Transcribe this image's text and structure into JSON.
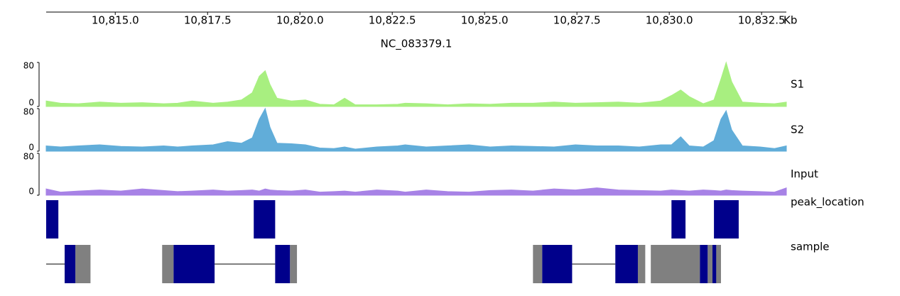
{
  "chart_data": [
    {
      "type": "axis",
      "title": "NC_083379.1",
      "unit": "Kb",
      "xlim": [
        10813.13,
        10833.17
      ],
      "xticks": [
        {
          "value": 10815,
          "label": "10,815.0"
        },
        {
          "value": 10817.5,
          "label": "10,817.5"
        },
        {
          "value": 10820,
          "label": "10,820.0"
        },
        {
          "value": 10822.5,
          "label": "10,822.5"
        },
        {
          "value": 10825,
          "label": "10,825.0"
        },
        {
          "value": 10827.5,
          "label": "10,827.5"
        },
        {
          "value": 10830,
          "label": "10,830.0"
        },
        {
          "value": 10832.5,
          "label": "10,832.5"
        }
      ]
    },
    {
      "type": "area",
      "name": "S1",
      "color": "#a8ef80",
      "xlim": [
        10813.13,
        10833.17
      ],
      "ylim": [
        0,
        80
      ],
      "yticks": [
        0,
        80
      ],
      "x": [
        10813.13,
        10813.52,
        10814.0,
        10814.58,
        10815.15,
        10815.73,
        10816.31,
        10816.69,
        10817.08,
        10817.65,
        10818.04,
        10818.42,
        10818.71,
        10818.9,
        10819.06,
        10819.19,
        10819.38,
        10819.77,
        10820.15,
        10820.54,
        10820.92,
        10821.21,
        10821.5,
        10822.08,
        10822.65,
        10822.85,
        10823.42,
        10824.0,
        10824.58,
        10825.15,
        10825.73,
        10826.31,
        10826.88,
        10827.46,
        10828.04,
        10828.62,
        10829.19,
        10829.77,
        10830.06,
        10830.31,
        10830.54,
        10830.92,
        10831.21,
        10831.4,
        10831.54,
        10831.69,
        10831.98,
        10832.46,
        10832.85,
        10833.17
      ],
      "values": [
        10,
        6,
        5,
        8,
        6,
        7,
        5,
        6,
        10,
        6,
        8,
        12,
        25,
        55,
        65,
        40,
        15,
        10,
        12,
        4,
        3,
        15,
        3,
        3,
        4,
        6,
        5,
        3,
        5,
        4,
        6,
        6,
        8,
        6,
        7,
        8,
        6,
        10,
        20,
        30,
        18,
        5,
        12,
        50,
        80,
        45,
        8,
        6,
        5,
        8
      ]
    },
    {
      "type": "area",
      "name": "S2",
      "color": "#61add9",
      "xlim": [
        10813.13,
        10833.17
      ],
      "ylim": [
        0,
        80
      ],
      "yticks": [
        0,
        80
      ],
      "x": [
        10813.13,
        10813.52,
        10814.0,
        10814.58,
        10815.15,
        10815.73,
        10816.31,
        10816.69,
        10817.08,
        10817.65,
        10818.04,
        10818.42,
        10818.71,
        10818.9,
        10819.06,
        10819.19,
        10819.38,
        10819.77,
        10820.15,
        10820.54,
        10820.92,
        10821.21,
        10821.5,
        10822.08,
        10822.65,
        10822.85,
        10823.42,
        10824.0,
        10824.58,
        10825.15,
        10825.73,
        10826.31,
        10826.88,
        10827.46,
        10828.04,
        10828.62,
        10829.19,
        10829.77,
        10830.06,
        10830.31,
        10830.54,
        10830.92,
        10831.21,
        10831.4,
        10831.54,
        10831.69,
        10831.98,
        10832.46,
        10832.85,
        10833.17
      ],
      "values": [
        10,
        8,
        10,
        12,
        9,
        8,
        10,
        8,
        10,
        12,
        18,
        15,
        25,
        60,
        80,
        45,
        15,
        14,
        12,
        6,
        5,
        8,
        4,
        8,
        10,
        12,
        8,
        10,
        12,
        8,
        10,
        9,
        8,
        12,
        10,
        10,
        8,
        12,
        12,
        27,
        10,
        8,
        20,
        60,
        76,
        40,
        10,
        8,
        5,
        10
      ]
    },
    {
      "type": "area",
      "name": "Input",
      "color": "#a782e6",
      "xlim": [
        10813.13,
        10833.17
      ],
      "ylim": [
        0,
        80
      ],
      "yticks": [
        0,
        80
      ],
      "x": [
        10813.13,
        10813.52,
        10814.0,
        10814.58,
        10815.15,
        10815.73,
        10816.31,
        10816.69,
        10817.08,
        10817.65,
        10818.04,
        10818.42,
        10818.71,
        10818.9,
        10819.06,
        10819.19,
        10819.38,
        10819.77,
        10820.15,
        10820.54,
        10820.92,
        10821.21,
        10821.5,
        10822.08,
        10822.65,
        10822.85,
        10823.42,
        10824.0,
        10824.58,
        10825.15,
        10825.73,
        10826.31,
        10826.88,
        10827.46,
        10828.04,
        10828.62,
        10829.19,
        10829.77,
        10830.06,
        10830.31,
        10830.54,
        10830.92,
        10831.21,
        10831.4,
        10831.54,
        10831.69,
        10831.98,
        10832.46,
        10832.85,
        10833.17
      ],
      "values": [
        12,
        6,
        8,
        10,
        8,
        12,
        9,
        7,
        8,
        10,
        8,
        9,
        10,
        8,
        12,
        10,
        9,
        8,
        10,
        6,
        7,
        8,
        6,
        10,
        8,
        6,
        10,
        7,
        6,
        9,
        10,
        8,
        12,
        10,
        14,
        10,
        9,
        8,
        10,
        9,
        8,
        10,
        9,
        8,
        10,
        9,
        8,
        7,
        6,
        14
      ]
    },
    {
      "type": "intervals",
      "name": "peak_location",
      "color": "#00008b",
      "xlim": [
        10813.13,
        10833.17
      ],
      "intervals": [
        [
          10813.13,
          10813.46
        ],
        [
          10818.75,
          10819.33
        ],
        [
          10830.06,
          10830.44
        ],
        [
          10831.21,
          10831.88
        ]
      ]
    },
    {
      "type": "gene",
      "name": "sample",
      "cds_color": "#00008b",
      "utr_color": "#808080",
      "xlim": [
        10813.13,
        10833.17
      ],
      "introns": [
        [
          10813.13,
          10813.63
        ],
        [
          10817.69,
          10819.33
        ],
        [
          10827.37,
          10828.54
        ]
      ],
      "utr": [
        [
          10813.92,
          10814.33
        ],
        [
          10816.27,
          10816.58
        ],
        [
          10819.73,
          10819.92
        ],
        [
          10826.31,
          10826.56
        ],
        [
          10829.15,
          10829.35
        ],
        [
          10829.5,
          10830.83
        ],
        [
          10831.04,
          10831.4
        ]
      ],
      "cds": [
        [
          10813.63,
          10813.92
        ],
        [
          10816.58,
          10817.69
        ],
        [
          10819.33,
          10819.73
        ],
        [
          10826.56,
          10827.37
        ],
        [
          10828.54,
          10829.15
        ],
        [
          10830.83,
          10831.04
        ],
        [
          10831.17,
          10831.27
        ]
      ]
    }
  ]
}
